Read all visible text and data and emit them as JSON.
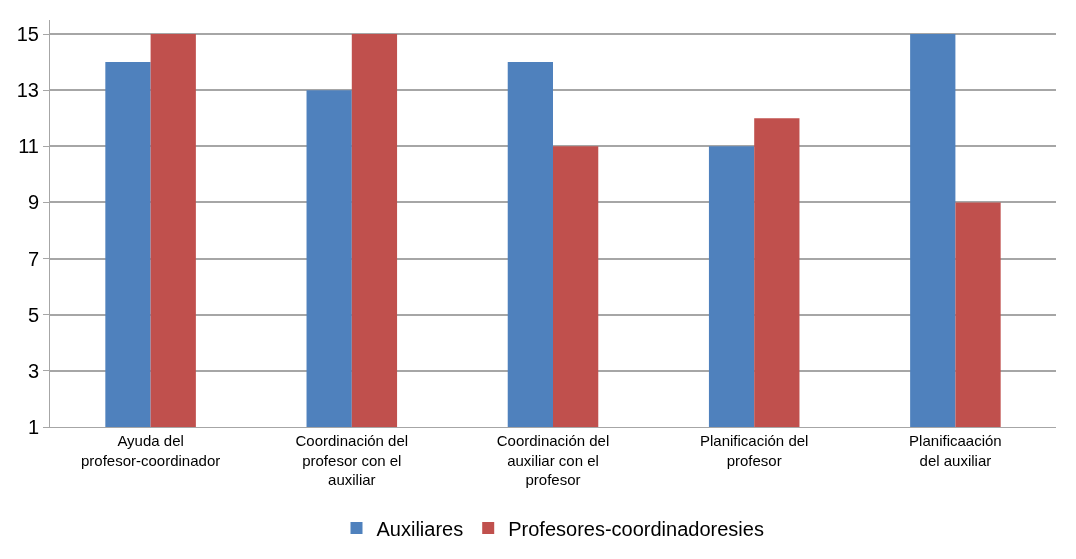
{
  "chart_data": {
    "type": "bar",
    "categories": [
      "Ayuda del profesor-coordinador",
      "Coordinación del profesor con el auxiliar",
      "Coordinación del auxiliar con el profesor",
      "Planificación del profesor",
      "Planificaación del auxiliar"
    ],
    "series": [
      {
        "name": "Auxiliares",
        "color": "#4f81bd",
        "values": [
          14,
          13,
          14,
          11,
          15
        ]
      },
      {
        "name": "Profesores-coordinadoresies",
        "color": "#c0504d",
        "values": [
          15,
          15,
          11,
          12,
          9
        ]
      }
    ],
    "ylim": [
      1,
      15.5
    ],
    "yticks": [
      1,
      3,
      5,
      7,
      9,
      11,
      13,
      15
    ],
    "grid": "y",
    "legend": "bottom"
  }
}
